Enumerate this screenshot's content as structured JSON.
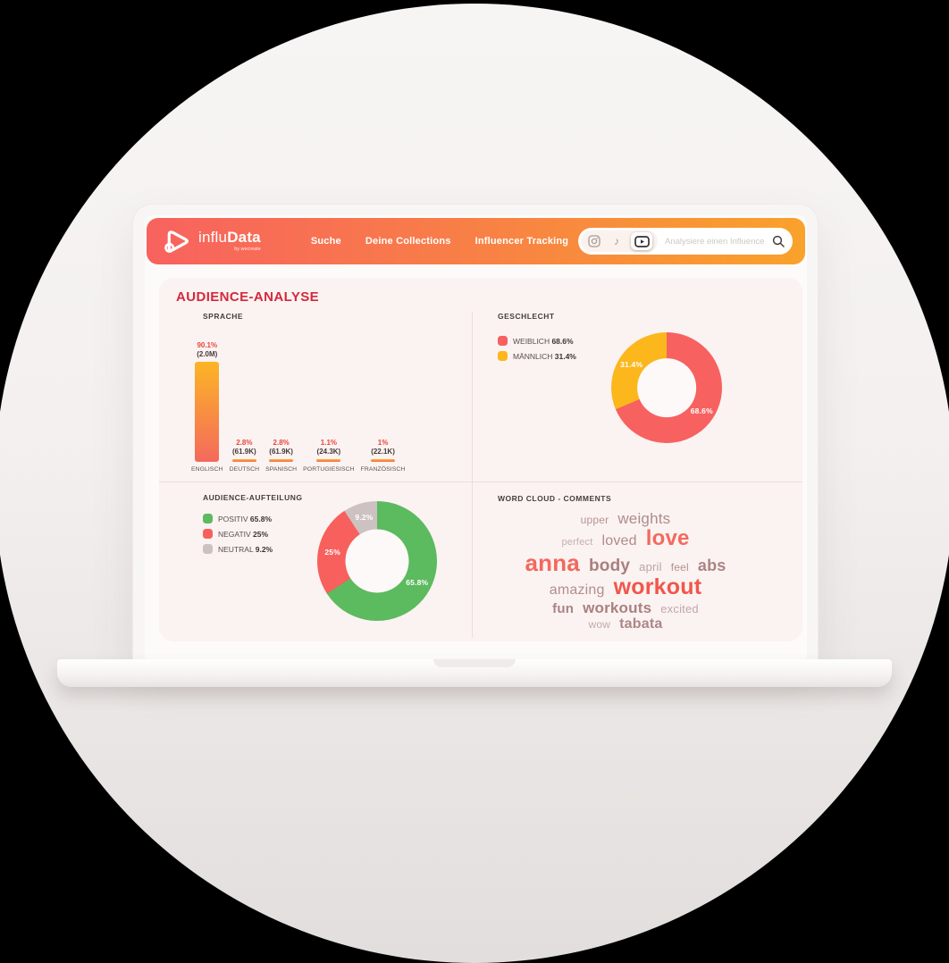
{
  "header": {
    "brand": {
      "name_regular": "influ",
      "name_bold": "Data",
      "tagline": "by wecreate"
    },
    "nav": [
      "Suche",
      "Deine Collections",
      "Influencer Tracking"
    ],
    "search": {
      "placeholder": "Analysiere einen Influencer",
      "platforms": [
        {
          "name": "instagram",
          "selected": false
        },
        {
          "name": "tiktok",
          "selected": false
        },
        {
          "name": "youtube",
          "selected": true
        }
      ]
    }
  },
  "page_title": "AUDIENCE-ANALYSE",
  "colors": {
    "navbar_gradient_left": "#F8625F",
    "navbar_gradient_right": "#F9A22B",
    "title_red": "#D3293C",
    "female_red": "#F76160",
    "male_yellow": "#FCB71D",
    "positive_green": "#5CBA5F",
    "negative_red": "#F7605C",
    "neutral_gray": "#CDC1C1",
    "card_background": "#FBF3F1"
  },
  "chart_data": [
    {
      "id": "sprache",
      "type": "bar",
      "title": "SPRACHE",
      "categories": [
        "ENGLISCH",
        "DEUTSCH",
        "SPANISCH",
        "PORTUGIESISCH",
        "FRANZÖSISCH"
      ],
      "values": [
        90.1,
        2.8,
        2.8,
        1.1,
        1.0
      ],
      "percent_labels": [
        "90.1%",
        "2.8%",
        "2.8%",
        "1.1%",
        "1%"
      ],
      "count_labels": [
        "(2.0M)",
        "(61.9K)",
        "(61.9K)",
        "(24.3K)",
        "(22.1K)"
      ],
      "ylim": [
        0,
        100
      ],
      "grid": false,
      "bar_gradient_top": "#FCB525",
      "bar_gradient_bottom": "#F4695D"
    },
    {
      "id": "geschlecht",
      "type": "donut",
      "title": "GESCHLECHT",
      "legend_position": "left",
      "start_at_top": true,
      "direction": "clockwise",
      "series": [
        {
          "name": "WEIBLICH",
          "value": 68.6,
          "label": "68.6%",
          "color": "#F76160"
        },
        {
          "name": "MÄNNLICH",
          "value": 31.4,
          "label": "31.4%",
          "color": "#FCB71D"
        }
      ]
    },
    {
      "id": "audience_aufteilung",
      "type": "donut",
      "title": "AUDIENCE-AUFTEILUNG",
      "legend_position": "left",
      "start_at_top": true,
      "direction": "clockwise",
      "series": [
        {
          "name": "POSITIV",
          "value": 65.8,
          "label": "65.8%",
          "color": "#5CBA5F"
        },
        {
          "name": "NEGATIV",
          "value": 25,
          "label": "25%",
          "color": "#F7605C"
        },
        {
          "name": "NEUTRAL",
          "value": 9.2,
          "label": "9.2%",
          "color": "#CDC1C1"
        }
      ]
    },
    {
      "id": "word_cloud",
      "type": "wordcloud",
      "title": "WORD CLOUD - COMMENTS",
      "rows": [
        [
          {
            "text": "upper",
            "size": 12,
            "color": "#B59393",
            "bold": false
          },
          {
            "text": "weights",
            "size": 17,
            "color": "#AE8C8C",
            "bold": false
          }
        ],
        [
          {
            "text": "perfect",
            "size": 11,
            "color": "#C4B0B0",
            "bold": false
          },
          {
            "text": "loved",
            "size": 16,
            "color": "#B18A8A",
            "bold": false
          },
          {
            "text": "love",
            "size": 24,
            "color": "#F26A60",
            "bold": true
          }
        ],
        [
          {
            "text": "anna",
            "size": 26,
            "color": "#F2695F",
            "bold": true
          },
          {
            "text": "body",
            "size": 19,
            "color": "#A88080",
            "bold": true
          },
          {
            "text": "april",
            "size": 13,
            "color": "#BCA4A4",
            "bold": false
          },
          {
            "text": "feel",
            "size": 12,
            "color": "#B29090",
            "bold": false
          },
          {
            "text": "abs",
            "size": 18,
            "color": "#AB8585",
            "bold": true
          }
        ],
        [
          {
            "text": "amazing",
            "size": 16,
            "color": "#B18E8E",
            "bold": false
          },
          {
            "text": "workout",
            "size": 25,
            "color": "#F1564C",
            "bold": true
          }
        ],
        [
          {
            "text": "fun",
            "size": 15,
            "color": "#A98484",
            "bold": true
          },
          {
            "text": "workouts",
            "size": 17,
            "color": "#A88181",
            "bold": true
          },
          {
            "text": "excited",
            "size": 13,
            "color": "#BFA9A9",
            "bold": false
          }
        ],
        [
          {
            "text": "wow",
            "size": 12,
            "color": "#C0ABAB",
            "bold": false
          },
          {
            "text": "tabata",
            "size": 16,
            "color": "#AC8787",
            "bold": true
          }
        ]
      ]
    }
  ]
}
